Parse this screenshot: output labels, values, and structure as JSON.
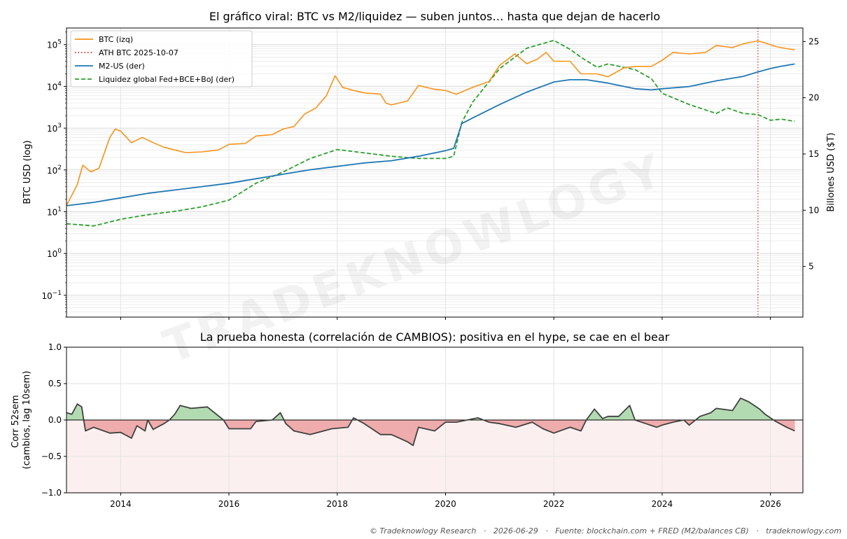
{
  "chart_data": [
    {
      "type": "line",
      "title": "El gráfico viral: BTC vs M2/liquidez — suben juntos… hasta que dejan de hacerlo",
      "ylabel_left": "BTC USD (log)",
      "ylabel_right": "Billones USD ($T)",
      "y_left_scale": "log",
      "y_left_lim": [
        0.03,
        250000
      ],
      "y_right_lim": [
        0.5,
        26.2
      ],
      "x_lim": [
        "2013-01",
        "2026-07"
      ],
      "x_ticks": [
        "2014",
        "2016",
        "2018",
        "2020",
        "2022",
        "2024",
        "2026"
      ],
      "y_left_ticks": [
        "10^5",
        "10^4",
        "10^3",
        "10^2",
        "10^1",
        "10^0",
        "10^−1"
      ],
      "y_right_ticks": [
        "25",
        "20",
        "15",
        "10",
        "5"
      ],
      "grid": true,
      "legend_position": "top-left",
      "legend": [
        {
          "label": "BTC (izq)",
          "color": "#f7931a",
          "style": "solid"
        },
        {
          "label": "ATH BTC 2025-10-07",
          "color": "#d62728",
          "style": "dotted"
        },
        {
          "label": "M2-US (der)",
          "color": "#1f77b4",
          "style": "solid"
        },
        {
          "label": "Liquidez global Fed+BCE+BoJ (der)",
          "color": "#2ca02c",
          "style": "dashed"
        }
      ],
      "vline": {
        "x": 2025.77,
        "label": "ATH BTC 2025-10-07"
      },
      "series": [
        {
          "name": "BTC (izq)",
          "axis": "left",
          "color": "#f7931a",
          "x": [
            2013.0,
            2013.2,
            2013.3,
            2013.45,
            2013.6,
            2013.8,
            2013.9,
            2014.0,
            2014.2,
            2014.4,
            2014.6,
            2014.8,
            2015.0,
            2015.2,
            2015.5,
            2015.8,
            2016.0,
            2016.3,
            2016.5,
            2016.8,
            2017.0,
            2017.2,
            2017.4,
            2017.6,
            2017.8,
            2017.96,
            2018.1,
            2018.3,
            2018.5,
            2018.8,
            2018.9,
            2019.0,
            2019.3,
            2019.5,
            2019.8,
            2020.0,
            2020.2,
            2020.5,
            2020.8,
            2021.0,
            2021.28,
            2021.5,
            2021.7,
            2021.86,
            2022.0,
            2022.3,
            2022.5,
            2022.8,
            2023.0,
            2023.3,
            2023.5,
            2023.8,
            2024.0,
            2024.2,
            2024.5,
            2024.8,
            2025.0,
            2025.3,
            2025.5,
            2025.77,
            2025.9,
            2026.1,
            2026.3,
            2026.45
          ],
          "values": [
            14,
            45,
            130,
            90,
            110,
            600,
            950,
            850,
            450,
            600,
            450,
            350,
            300,
            260,
            270,
            300,
            410,
            430,
            650,
            700,
            950,
            1100,
            2200,
            3000,
            6000,
            18000,
            9500,
            8000,
            7000,
            6500,
            4000,
            3600,
            4500,
            10500,
            8500,
            8000,
            6500,
            9500,
            13000,
            32000,
            60000,
            35000,
            45000,
            65000,
            40000,
            40000,
            20000,
            20000,
            17000,
            28000,
            30000,
            30000,
            42000,
            65000,
            60000,
            65000,
            95000,
            85000,
            105000,
            123000,
            110000,
            90000,
            80000,
            75000
          ]
        },
        {
          "name": "M2-US (der)",
          "axis": "right",
          "color": "#1f77b4",
          "x": [
            2013.0,
            2013.5,
            2014.0,
            2014.5,
            2015.0,
            2015.5,
            2016.0,
            2016.5,
            2017.0,
            2017.5,
            2018.0,
            2018.5,
            2019.0,
            2019.5,
            2020.0,
            2020.15,
            2020.3,
            2020.5,
            2021.0,
            2021.5,
            2022.0,
            2022.3,
            2022.6,
            2023.0,
            2023.5,
            2023.8,
            2024.0,
            2024.5,
            2025.0,
            2025.5,
            2025.77,
            2026.0,
            2026.2,
            2026.45
          ],
          "values": [
            10.4,
            10.7,
            11.1,
            11.5,
            11.8,
            12.1,
            12.4,
            12.8,
            13.2,
            13.6,
            13.9,
            14.2,
            14.4,
            14.8,
            15.3,
            15.5,
            17.7,
            18.2,
            19.4,
            20.5,
            21.4,
            21.6,
            21.6,
            21.3,
            20.8,
            20.7,
            20.8,
            21.0,
            21.5,
            21.9,
            22.3,
            22.6,
            22.8,
            23.0
          ]
        },
        {
          "name": "Liquidez global Fed+BCE+BoJ (der)",
          "axis": "right",
          "color": "#2ca02c",
          "x": [
            2013.0,
            2013.5,
            2014.0,
            2014.5,
            2015.0,
            2015.5,
            2016.0,
            2016.5,
            2017.0,
            2017.5,
            2018.0,
            2018.5,
            2019.0,
            2019.5,
            2020.0,
            2020.15,
            2020.3,
            2020.5,
            2021.0,
            2021.5,
            2022.0,
            2022.3,
            2022.5,
            2022.8,
            2023.0,
            2023.5,
            2023.8,
            2024.0,
            2024.5,
            2025.0,
            2025.2,
            2025.5,
            2025.77,
            2026.0,
            2026.2,
            2026.45
          ],
          "values": [
            8.8,
            8.6,
            9.2,
            9.6,
            9.9,
            10.3,
            10.9,
            12.4,
            13.4,
            14.6,
            15.4,
            15.1,
            14.8,
            14.6,
            14.6,
            14.8,
            17.8,
            19.6,
            22.6,
            24.4,
            25.1,
            24.3,
            23.6,
            22.7,
            23.0,
            22.5,
            21.7,
            20.4,
            19.4,
            18.6,
            19.1,
            18.6,
            18.5,
            18.0,
            18.1,
            17.9
          ]
        }
      ]
    },
    {
      "type": "area",
      "title": "La prueba honesta (correlación de CAMBIOS): positiva en el hype, se cae en el bear",
      "ylabel": "Corr 52sem\n(cambios, lag 10sem)",
      "ylim": [
        -1.0,
        1.0
      ],
      "y_ticks": [
        "1.0",
        "0.5",
        "0.0",
        "−0.5",
        "−1.0"
      ],
      "x_ticks": [
        "2014",
        "2016",
        "2018",
        "2020",
        "2022",
        "2024",
        "2026"
      ],
      "grid": true,
      "positive_color": "#b3dbb1",
      "negative_color": "#efacac",
      "line_color": "#404040",
      "series": [
        {
          "name": "corr",
          "x": [
            2013.0,
            2013.1,
            2013.2,
            2013.28,
            2013.35,
            2013.5,
            2013.8,
            2014.0,
            2014.2,
            2014.3,
            2014.45,
            2014.5,
            2014.6,
            2014.8,
            2014.9,
            2015.0,
            2015.1,
            2015.3,
            2015.6,
            2015.9,
            2016.0,
            2016.4,
            2016.5,
            2016.8,
            2016.95,
            2017.05,
            2017.2,
            2017.5,
            2017.9,
            2018.2,
            2018.3,
            2018.5,
            2018.8,
            2019.0,
            2019.3,
            2019.4,
            2019.5,
            2019.8,
            2020.0,
            2020.2,
            2020.4,
            2020.6,
            2020.8,
            2021.0,
            2021.3,
            2021.6,
            2021.8,
            2022.0,
            2022.3,
            2022.5,
            2022.6,
            2022.75,
            2022.9,
            2023.0,
            2023.2,
            2023.4,
            2023.5,
            2023.7,
            2023.9,
            2024.0,
            2024.2,
            2024.4,
            2024.5,
            2024.7,
            2024.9,
            2025.0,
            2025.3,
            2025.45,
            2025.6,
            2025.8,
            2025.9,
            2026.1,
            2026.3,
            2026.45
          ],
          "values": [
            0.1,
            0.08,
            0.22,
            0.18,
            -0.15,
            -0.1,
            -0.18,
            -0.17,
            -0.25,
            -0.08,
            -0.15,
            0.0,
            -0.13,
            -0.05,
            0.0,
            0.08,
            0.2,
            0.16,
            0.18,
            0.0,
            -0.12,
            -0.12,
            -0.02,
            0.0,
            0.1,
            -0.05,
            -0.15,
            -0.2,
            -0.12,
            -0.1,
            0.03,
            -0.05,
            -0.2,
            -0.2,
            -0.3,
            -0.35,
            -0.1,
            -0.15,
            -0.03,
            -0.03,
            0.0,
            0.03,
            -0.03,
            -0.05,
            -0.1,
            -0.03,
            -0.12,
            -0.18,
            -0.1,
            -0.15,
            0.0,
            0.15,
            0.02,
            0.05,
            0.05,
            0.2,
            0.0,
            -0.05,
            -0.1,
            -0.07,
            -0.03,
            0.0,
            -0.07,
            0.05,
            0.1,
            0.16,
            0.13,
            0.3,
            0.25,
            0.15,
            0.08,
            -0.02,
            -0.1,
            -0.15
          ]
        }
      ]
    }
  ],
  "watermark": "TRADEKNOWLOGY",
  "footer": "© Tradeknowlogy Research   ·   2026-06-29   ·   Fuente: blockchain.com + FRED (M2/balances CB)   ·   tradeknowlogy.com"
}
